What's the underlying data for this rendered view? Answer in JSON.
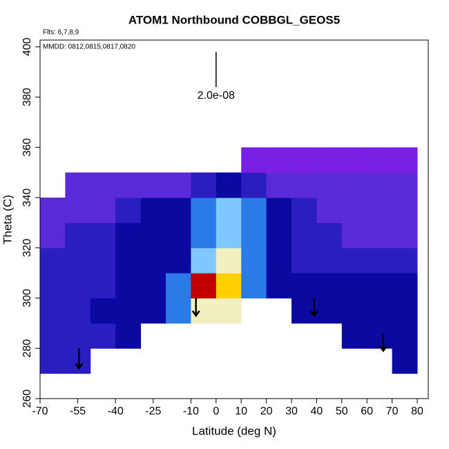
{
  "chart_data": {
    "type": "heatmap",
    "title": "ATOM1 Northbound COBBGL_GEOS5",
    "subtitle": "Flts: 6,7,8,9",
    "annotation": "MMDD: 0812,0815,0817,0820",
    "x_label": "Latitude (deg N)",
    "y_label": "Theta (C)",
    "xlim": [
      -70,
      84.4
    ],
    "ylim": [
      260,
      402.7
    ],
    "xticks": [
      -70,
      -55,
      -40,
      -25,
      -10,
      0,
      10,
      20,
      30,
      40,
      50,
      60,
      70,
      80
    ],
    "yticks": [
      260,
      280,
      300,
      320,
      340,
      360,
      380,
      400
    ],
    "x_edges": [
      -70,
      -60,
      -50,
      -40,
      -30,
      -20,
      -10,
      0,
      10,
      20,
      30,
      40,
      50,
      60,
      70,
      80
    ],
    "y_edges": [
      270,
      280,
      290,
      300,
      310,
      320,
      330,
      340,
      350,
      360
    ],
    "palette": [
      "#7a1fe6",
      "#5a2ad8",
      "#2a1ec0",
      "#0a0aa0",
      "#2a7be8",
      "#7ec8ff",
      "#f0f0c0",
      "#ffd000",
      "#ff5000",
      "#c00000"
    ],
    "levels": [
      [
        2,
        2,
        null,
        null,
        null,
        null,
        null,
        null,
        null,
        null,
        null,
        null,
        null,
        null,
        3
      ],
      [
        2,
        2,
        2,
        3,
        null,
        null,
        null,
        null,
        null,
        null,
        null,
        null,
        3,
        3,
        3
      ],
      [
        2,
        2,
        3,
        3,
        3,
        4,
        6,
        6,
        null,
        null,
        3,
        3,
        3,
        3,
        3
      ],
      [
        2,
        2,
        2,
        3,
        3,
        4,
        9,
        7,
        4,
        3,
        3,
        3,
        3,
        3,
        3
      ],
      [
        2,
        2,
        2,
        3,
        3,
        3,
        5,
        6,
        4,
        3,
        2,
        2,
        2,
        2,
        2
      ],
      [
        1,
        2,
        2,
        3,
        3,
        3,
        4,
        5,
        4,
        3,
        2,
        2,
        1,
        1,
        1
      ],
      [
        1,
        1,
        1,
        2,
        3,
        3,
        4,
        5,
        4,
        3,
        2,
        1,
        1,
        1,
        1
      ],
      [
        null,
        1,
        1,
        1,
        1,
        1,
        2,
        3,
        2,
        1,
        1,
        1,
        1,
        1,
        1
      ],
      [
        null,
        null,
        null,
        null,
        null,
        null,
        null,
        null,
        0,
        0,
        0,
        0,
        0,
        0,
        0
      ]
    ],
    "scale_bar": {
      "label": "2.0e-08",
      "x": 0,
      "y": [
        398,
        384
      ]
    },
    "arrows": {
      "x": [
        -54.5,
        -8,
        39,
        66.5
      ],
      "top": [
        280,
        300,
        300,
        286
      ],
      "bottom": [
        272,
        293,
        293,
        279
      ]
    }
  }
}
